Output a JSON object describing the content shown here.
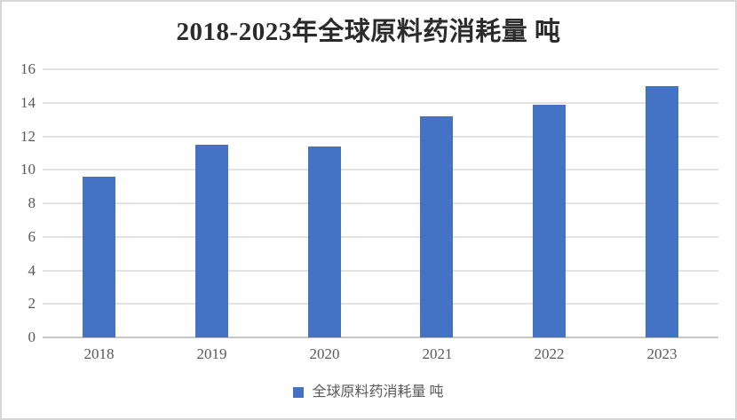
{
  "chart_data": {
    "type": "bar",
    "title": "2018-2023年全球原料药消耗量 吨",
    "categories": [
      "2018",
      "2019",
      "2020",
      "2021",
      "2022",
      "2023"
    ],
    "series": [
      {
        "name": "全球原料药消耗量 吨",
        "values": [
          9.6,
          11.5,
          11.4,
          13.2,
          13.9,
          15.0
        ]
      }
    ],
    "xlabel": "",
    "ylabel": "",
    "ylim": [
      0,
      16
    ],
    "y_ticks": [
      0,
      2,
      4,
      6,
      8,
      10,
      12,
      14,
      16
    ],
    "grid": true,
    "legend_position": "bottom"
  },
  "legend": {
    "label": "全球原料药消耗量 吨"
  },
  "colors": {
    "bar": "#4472C4",
    "gridline": "#e2e2e2",
    "axis_line": "#c6c6c6",
    "tick_text": "#595959",
    "title_text": "#2b2b2b",
    "frame_border": "#d6d6d6"
  }
}
